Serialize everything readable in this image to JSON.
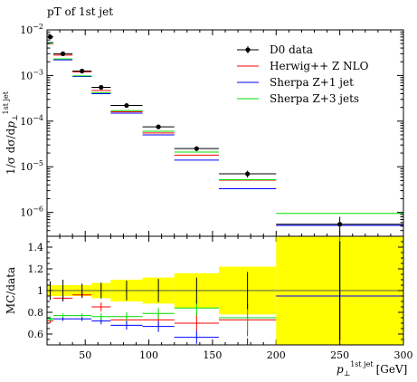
{
  "chart_data": {
    "type": "scatter",
    "title": "pT of 1st jet",
    "xlabel": "p⊥ 1st jet [GeV]",
    "xlabel_main": "p",
    "xlabel_sub": "⊥",
    "xlabel_sup": "1st jet",
    "xlabel_unit": "[GeV]",
    "ylabel": "1/σ dσ/dp⊥ 1st jet",
    "ylabel_main": "1/σ dσ/d",
    "ylabel_p": "p",
    "ylabel_sub": "⊥",
    "ylabel_sup": "1st jet",
    "ratio_ylabel": "MC/data",
    "xlim": [
      20,
      300
    ],
    "ylim": [
      3e-07,
      0.01
    ],
    "yscale": "log",
    "ratio_ylim": [
      0.5,
      1.5
    ],
    "x_ticks": [
      50,
      100,
      150,
      200,
      250,
      300
    ],
    "y_ticks": [
      {
        "value": 0.01,
        "base": "10",
        "exp": "−2"
      },
      {
        "value": 0.001,
        "base": "10",
        "exp": "−3"
      },
      {
        "value": 0.0001,
        "base": "10",
        "exp": "−4"
      },
      {
        "value": 1e-05,
        "base": "10",
        "exp": "−5"
      },
      {
        "value": 1e-06,
        "base": "10",
        "exp": "−6"
      }
    ],
    "ratio_ticks": [
      "0.6",
      "0.8",
      "1",
      "1.2",
      "1.4"
    ],
    "ratio_tick_values": [
      0.6,
      0.8,
      1.0,
      1.2,
      1.4
    ],
    "legend_position": "top-right",
    "bins": [
      [
        20,
        25
      ],
      [
        25,
        40
      ],
      [
        40,
        55
      ],
      [
        55,
        70
      ],
      [
        70,
        95
      ],
      [
        95,
        120
      ],
      [
        120,
        155
      ],
      [
        155,
        200
      ],
      [
        200,
        300
      ]
    ],
    "data_band": [
      0.05,
      0.05,
      0.05,
      0.07,
      0.1,
      0.12,
      0.16,
      0.22,
      0.5
    ],
    "series": [
      {
        "name": "D0 data",
        "color": "#000000",
        "x": [
          22.5,
          32.5,
          47.5,
          62.5,
          82.5,
          107.5,
          137.5,
          177.5,
          250
        ],
        "y": [
          0.007,
          0.003,
          0.00125,
          0.00055,
          0.00022,
          7.5e-05,
          2.5e-05,
          7e-06,
          5.5e-07
        ],
        "yerr_lo": [
          0.0006,
          0.0003,
          8e-05,
          4e-05,
          2e-05,
          8e-06,
          3e-06,
          1.2e-06,
          2.5e-07
        ],
        "yerr_hi": [
          0.0006,
          0.0003,
          8e-05,
          4e-05,
          2e-05,
          8e-06,
          3e-06,
          1.2e-06,
          2.5e-07
        ]
      },
      {
        "name": "Herwig++ Z NLO",
        "color": "#ff0000",
        "y": [
          0.005,
          0.0028,
          0.0012,
          0.00047,
          0.00016,
          5.5e-05,
          1.8e-05,
          5.1e-06,
          5.2e-07
        ],
        "ratio": [
          0.72,
          0.93,
          0.96,
          0.85,
          0.73,
          0.73,
          0.7,
          0.73,
          0.95
        ],
        "ratio_err": [
          0.02,
          0.02,
          0.03,
          0.04,
          0.05,
          0.06,
          0.08,
          0.15,
          0.6
        ]
      },
      {
        "name": "Sherpa Z+1 jet",
        "color": "#0000ff",
        "y": [
          0.0053,
          0.0022,
          0.00095,
          0.0004,
          0.00015,
          5e-05,
          1.4e-05,
          3.3e-06,
          5.2e-07
        ],
        "ratio": [
          0.74,
          0.74,
          0.74,
          0.72,
          0.68,
          0.67,
          0.57,
          0.46,
          0.95
        ],
        "ratio_err": [
          0.02,
          0.02,
          0.02,
          0.03,
          0.04,
          0.05,
          0.06,
          0.1,
          0.5
        ]
      },
      {
        "name": "Sherpa Z+3 jets",
        "color": "#00dd00",
        "y": [
          0.0052,
          0.0023,
          0.00098,
          0.00042,
          0.00017,
          6e-05,
          2.1e-05,
          5.2e-06,
          9.5e-07
        ],
        "ratio": [
          0.74,
          0.77,
          0.77,
          0.76,
          0.76,
          0.79,
          0.84,
          0.75,
          1.7
        ],
        "ratio_err": [
          0.02,
          0.02,
          0.02,
          0.03,
          0.04,
          0.05,
          0.07,
          0.12,
          0.8
        ]
      }
    ]
  }
}
